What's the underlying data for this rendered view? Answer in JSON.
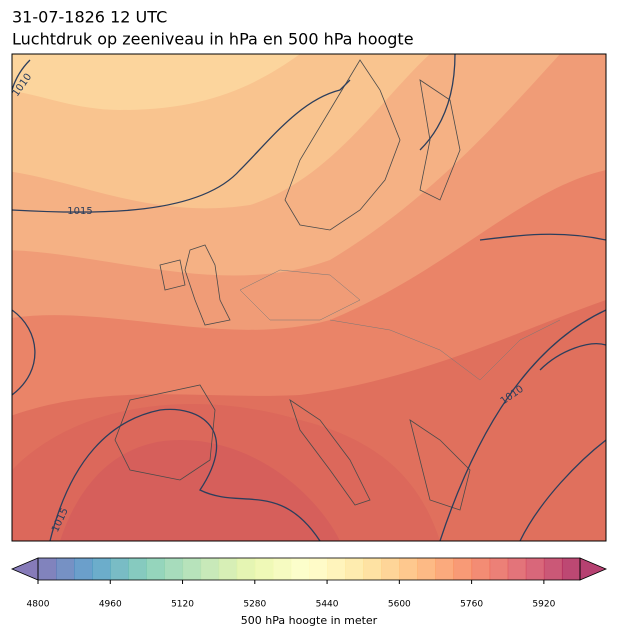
{
  "title": "31-07-1826 12 UTC",
  "subtitle": "Luchtdruk op zeeniveau in hPa en 500 hPa hoogte",
  "isobar_labels": [
    "1010",
    "1015",
    "1010",
    "1015"
  ],
  "colorbar": {
    "label": "500 hPa hoogte in meter",
    "lim": [
      4800,
      6000
    ],
    "ticks": [
      4800,
      4960,
      5120,
      5280,
      5440,
      5600,
      5760,
      5920
    ]
  }
}
